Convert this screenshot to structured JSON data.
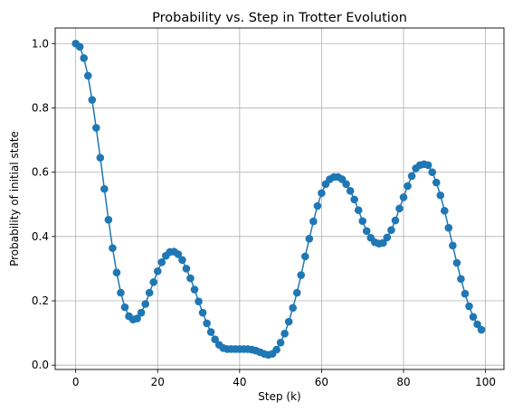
{
  "chart_data": {
    "type": "line",
    "title": "Probability vs. Step in Trotter Evolution",
    "xlabel": "Step (k)",
    "ylabel": "Probability of initial state",
    "xlim": [
      -5,
      104.5
    ],
    "ylim": [
      -0.0135,
      1.0485
    ],
    "xticks": [
      0,
      20,
      40,
      60,
      80,
      100
    ],
    "yticks": [
      0.0,
      0.2,
      0.4,
      0.6,
      0.8,
      1.0
    ],
    "xtick_labels": [
      "0",
      "20",
      "40",
      "60",
      "80",
      "100"
    ],
    "ytick_labels": [
      "0.0",
      "0.2",
      "0.4",
      "0.6",
      "0.8",
      "1.0"
    ],
    "grid": true,
    "marker": "circle",
    "color": "#1f77b4",
    "series": [
      {
        "x": [
          0,
          1,
          2,
          3,
          4,
          5,
          6,
          7,
          8,
          9,
          10,
          11,
          12,
          13,
          14,
          15,
          16,
          17,
          18,
          19,
          20,
          21,
          22,
          23,
          24,
          25,
          26,
          27,
          28,
          29,
          30,
          31,
          32,
          33,
          34,
          35,
          36,
          37,
          38,
          39,
          40,
          41,
          42,
          43,
          44,
          45,
          46,
          47,
          48,
          49,
          50,
          51,
          52,
          53,
          54,
          55,
          56,
          57,
          58,
          59,
          60,
          61,
          62,
          63,
          64,
          65,
          66,
          67,
          68,
          69,
          70,
          71,
          72,
          73,
          74,
          75,
          76,
          77,
          78,
          79,
          80,
          81,
          82,
          83,
          84,
          85,
          86,
          87,
          88,
          89,
          90,
          91,
          92,
          93,
          94,
          95,
          96,
          97,
          98,
          99
        ],
        "values": [
          1.0,
          0.99,
          0.955,
          0.9,
          0.825,
          0.738,
          0.645,
          0.548,
          0.452,
          0.364,
          0.288,
          0.225,
          0.18,
          0.152,
          0.142,
          0.145,
          0.163,
          0.19,
          0.225,
          0.258,
          0.292,
          0.32,
          0.34,
          0.352,
          0.353,
          0.345,
          0.327,
          0.3,
          0.27,
          0.235,
          0.198,
          0.163,
          0.13,
          0.103,
          0.08,
          0.063,
          0.053,
          0.05,
          0.05,
          0.05,
          0.05,
          0.05,
          0.05,
          0.048,
          0.045,
          0.04,
          0.035,
          0.032,
          0.035,
          0.048,
          0.07,
          0.098,
          0.135,
          0.178,
          0.225,
          0.28,
          0.338,
          0.393,
          0.447,
          0.495,
          0.535,
          0.563,
          0.578,
          0.585,
          0.585,
          0.578,
          0.563,
          0.542,
          0.515,
          0.482,
          0.448,
          0.417,
          0.396,
          0.382,
          0.378,
          0.38,
          0.397,
          0.42,
          0.45,
          0.487,
          0.522,
          0.557,
          0.588,
          0.612,
          0.622,
          0.625,
          0.622,
          0.6,
          0.568,
          0.528,
          0.48,
          0.427,
          0.372,
          0.318,
          0.268,
          0.222,
          0.183,
          0.15,
          0.127,
          0.11
        ]
      }
    ]
  }
}
